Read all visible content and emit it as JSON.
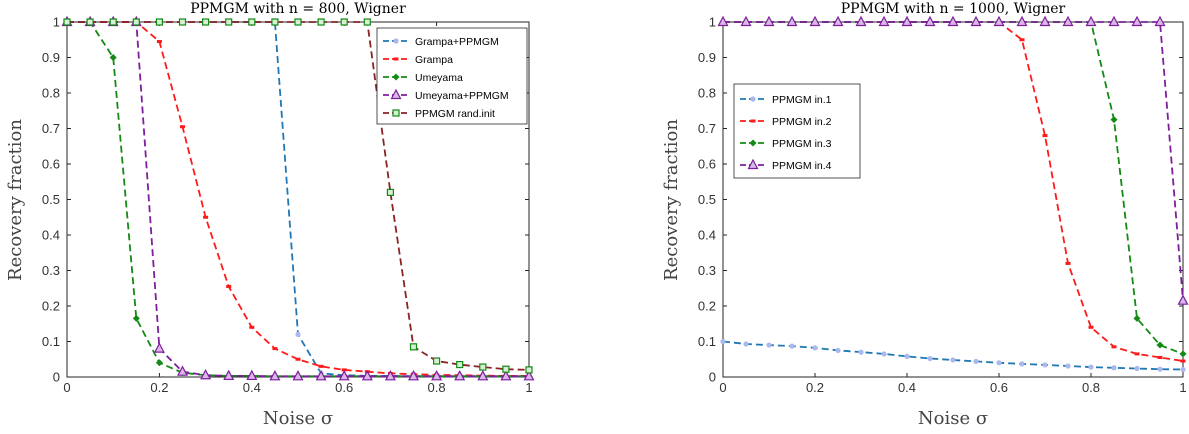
{
  "chart_data": [
    {
      "type": "line",
      "title": "PPMGM with n = 800, Wigner",
      "xlabel": "Noise σ",
      "ylabel": "Recovery fraction",
      "xlim": [
        0,
        1
      ],
      "ylim": [
        0,
        1
      ],
      "xticks": [
        "0",
        "0.2",
        "0.4",
        "0.6",
        "0.8",
        "1"
      ],
      "yticks": [
        "0",
        "0.1",
        "0.2",
        "0.3",
        "0.4",
        "0.5",
        "0.6",
        "0.7",
        "0.8",
        "0.9",
        "1"
      ],
      "legend_position": "top-right",
      "grid": false,
      "series": [
        {
          "name": "Grampa+PPMGM",
          "color": "#1f77b4",
          "marker": "dot",
          "x": [
            0,
            0.05,
            0.1,
            0.15,
            0.2,
            0.25,
            0.3,
            0.35,
            0.4,
            0.45,
            0.5,
            0.55,
            0.6,
            0.65,
            0.7,
            0.75,
            0.8,
            0.85,
            0.9,
            0.95,
            1.0
          ],
          "y": [
            1,
            1,
            1,
            1,
            1,
            1,
            1,
            1,
            1,
            1,
            0.12,
            0.01,
            0.005,
            0.003,
            0.003,
            0.002,
            0.002,
            0.002,
            0.002,
            0.002,
            0.002
          ]
        },
        {
          "name": "Grampa",
          "color": "#ff1a1a",
          "marker": "tick",
          "x": [
            0,
            0.05,
            0.1,
            0.15,
            0.2,
            0.25,
            0.3,
            0.35,
            0.4,
            0.45,
            0.5,
            0.55,
            0.6,
            0.65,
            0.7,
            0.75,
            0.8,
            0.85,
            0.9,
            0.95,
            1.0
          ],
          "y": [
            1,
            1,
            1,
            1,
            0.945,
            0.705,
            0.45,
            0.255,
            0.14,
            0.08,
            0.05,
            0.03,
            0.02,
            0.015,
            0.01,
            0.008,
            0.006,
            0.005,
            0.004,
            0.003,
            0.003
          ]
        },
        {
          "name": "Umeyama",
          "color": "#138a13",
          "marker": "diamond",
          "x": [
            0,
            0.05,
            0.1,
            0.15,
            0.2,
            0.25,
            0.3,
            0.35,
            0.4,
            0.45,
            0.5,
            0.55,
            0.6,
            0.65,
            0.7,
            0.75,
            0.8,
            0.85,
            0.9,
            0.95,
            1.0
          ],
          "y": [
            1,
            1,
            0.9,
            0.165,
            0.04,
            0.012,
            0.005,
            0.003,
            0.003,
            0.002,
            0.002,
            0.002,
            0.002,
            0.002,
            0.002,
            0.002,
            0.002,
            0.002,
            0.002,
            0.002,
            0.002
          ]
        },
        {
          "name": "Umeyama+PPMGM",
          "color": "#7e1e9c",
          "marker": "triangle",
          "x": [
            0,
            0.05,
            0.1,
            0.15,
            0.2,
            0.25,
            0.3,
            0.35,
            0.4,
            0.45,
            0.5,
            0.55,
            0.6,
            0.65,
            0.7,
            0.75,
            0.8,
            0.85,
            0.9,
            0.95,
            1.0
          ],
          "y": [
            1,
            1,
            1,
            1,
            0.08,
            0.015,
            0.005,
            0.003,
            0.003,
            0.002,
            0.002,
            0.002,
            0.002,
            0.002,
            0.002,
            0.002,
            0.002,
            0.002,
            0.002,
            0.002,
            0.002
          ]
        },
        {
          "name": "PPMGM rand.init",
          "color": "#8b2323",
          "marker": "square",
          "marker_color": "#138a13",
          "x": [
            0,
            0.05,
            0.1,
            0.15,
            0.2,
            0.25,
            0.3,
            0.35,
            0.4,
            0.45,
            0.5,
            0.55,
            0.6,
            0.65,
            0.7,
            0.75,
            0.8,
            0.85,
            0.9,
            0.95,
            1.0
          ],
          "y": [
            1,
            1,
            1,
            1,
            1,
            1,
            1,
            1,
            1,
            1,
            1,
            1,
            1,
            1,
            0.52,
            0.085,
            0.045,
            0.035,
            0.028,
            0.022,
            0.02
          ]
        }
      ]
    },
    {
      "type": "line",
      "title": "PPMGM with n = 1000, Wigner",
      "xlabel": "Noise σ",
      "ylabel": "Recovery fraction",
      "xlim": [
        0,
        1
      ],
      "ylim": [
        0,
        1
      ],
      "xticks": [
        "0",
        "0.2",
        "0.4",
        "0.6",
        "0.8",
        "1"
      ],
      "yticks": [
        "0",
        "0.1",
        "0.2",
        "0.3",
        "0.4",
        "0.5",
        "0.6",
        "0.7",
        "0.8",
        "0.9",
        "1"
      ],
      "legend_position": "upper-left",
      "grid": false,
      "series": [
        {
          "name": "PPMGM in.1",
          "color": "#1f77b4",
          "marker": "dot",
          "x": [
            0,
            0.05,
            0.1,
            0.15,
            0.2,
            0.25,
            0.3,
            0.35,
            0.4,
            0.45,
            0.5,
            0.55,
            0.6,
            0.65,
            0.7,
            0.75,
            0.8,
            0.85,
            0.9,
            0.95,
            1.0
          ],
          "y": [
            0.1,
            0.093,
            0.09,
            0.087,
            0.082,
            0.075,
            0.07,
            0.065,
            0.058,
            0.052,
            0.048,
            0.044,
            0.04,
            0.037,
            0.034,
            0.031,
            0.028,
            0.026,
            0.024,
            0.022,
            0.021
          ]
        },
        {
          "name": "PPMGM in.2",
          "color": "#ff1a1a",
          "marker": "tick",
          "x": [
            0,
            0.05,
            0.1,
            0.15,
            0.2,
            0.25,
            0.3,
            0.35,
            0.4,
            0.45,
            0.5,
            0.55,
            0.6,
            0.65,
            0.7,
            0.75,
            0.8,
            0.85,
            0.9,
            0.95,
            1.0
          ],
          "y": [
            1,
            1,
            1,
            1,
            1,
            1,
            1,
            1,
            1,
            1,
            1,
            1,
            1,
            0.95,
            0.68,
            0.32,
            0.14,
            0.085,
            0.065,
            0.055,
            0.045
          ]
        },
        {
          "name": "PPMGM in.3",
          "color": "#138a13",
          "marker": "diamond",
          "x": [
            0,
            0.05,
            0.1,
            0.15,
            0.2,
            0.25,
            0.3,
            0.35,
            0.4,
            0.45,
            0.5,
            0.55,
            0.6,
            0.65,
            0.7,
            0.75,
            0.8,
            0.85,
            0.9,
            0.95,
            1.0
          ],
          "y": [
            1,
            1,
            1,
            1,
            1,
            1,
            1,
            1,
            1,
            1,
            1,
            1,
            1,
            1,
            1,
            1,
            1,
            0.725,
            0.165,
            0.09,
            0.065
          ]
        },
        {
          "name": "PPMGM in.4",
          "color": "#7e1e9c",
          "marker": "triangle",
          "x": [
            0,
            0.05,
            0.1,
            0.15,
            0.2,
            0.25,
            0.3,
            0.35,
            0.4,
            0.45,
            0.5,
            0.55,
            0.6,
            0.65,
            0.7,
            0.75,
            0.8,
            0.85,
            0.9,
            0.95,
            1.0
          ],
          "y": [
            1,
            1,
            1,
            1,
            1,
            1,
            1,
            1,
            1,
            1,
            1,
            1,
            1,
            1,
            1,
            1,
            1,
            1,
            1,
            1,
            0.215
          ]
        }
      ]
    }
  ]
}
